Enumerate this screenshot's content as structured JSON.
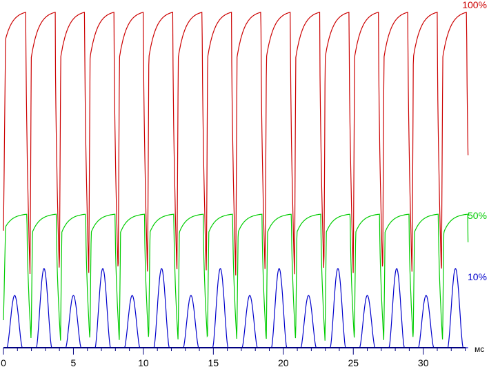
{
  "chart_data": {
    "type": "line",
    "title": "",
    "xlabel": "мс",
    "ylabel": "",
    "xlim": [
      0,
      34.5
    ],
    "ylim": [
      0,
      1
    ],
    "x_ticks": [
      "0",
      "5",
      "10",
      "15",
      "20",
      "25",
      "30"
    ],
    "x_tick_values": [
      0,
      5,
      10,
      15,
      20,
      25,
      30
    ],
    "grid": false,
    "period_ms": 2.1,
    "series": [
      {
        "name": "100%",
        "color": "#cc0000",
        "peak": 0.98,
        "trough": 0.21,
        "start": 0.34
      },
      {
        "name": "50%",
        "color": "#00cc00",
        "peak": 0.39,
        "trough": 0.02,
        "start": 0.08
      },
      {
        "name": "10%",
        "color": "#0000cc",
        "peak": 0.23,
        "trough": 0.0,
        "start": 0.0
      }
    ]
  }
}
